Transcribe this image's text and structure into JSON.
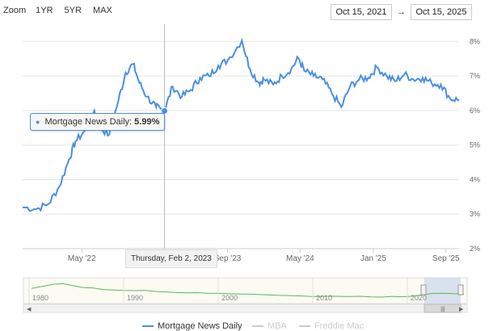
{
  "zoom": {
    "label": "Zoom",
    "buttons": [
      "1YR",
      "5YR",
      "MAX"
    ]
  },
  "range": {
    "from": "Oct 15, 2021",
    "separator": "→",
    "to": "Oct 15, 2025"
  },
  "tooltip": {
    "series": "Mortgage News Daily",
    "value": "5.99%"
  },
  "crosshair_label": "Thursday, Feb 2, 2023",
  "colors": {
    "primary": "#4a90e2",
    "navigator_line": "#5cb85c",
    "inactive_legend": "#cccccc"
  },
  "navigator": {
    "year_labels": [
      "1980",
      "1990",
      "2000",
      "2010",
      "2020"
    ]
  },
  "chart_data": {
    "type": "line",
    "title": "",
    "xlabel": "",
    "ylabel": "",
    "x_range": [
      "2021-10-15",
      "2025-10-15"
    ],
    "ylim": [
      2,
      8.5
    ],
    "grid": true,
    "y_axis_side": "right",
    "legend_position": "bottom",
    "x_tick_labels": [
      "May '22",
      "Sep '23",
      "May '24",
      "Jan '25",
      "Sep '25"
    ],
    "y_tick_labels": [
      "2%",
      "3%",
      "4%",
      "5%",
      "6%",
      "7%",
      "8%"
    ],
    "y_ticks": [
      2,
      3,
      4,
      5,
      6,
      7,
      8
    ],
    "x_ticks": [
      "2022-05-01",
      "2023-09-01",
      "2024-05-01",
      "2025-01-01",
      "2025-09-01"
    ],
    "highlighted_point": {
      "x": "2023-02-02",
      "y": 5.99
    },
    "series": [
      {
        "name": "Mortgage News Daily",
        "x": [
          "2021-10-15",
          "2021-12-01",
          "2022-01-10",
          "2022-02-15",
          "2022-03-20",
          "2022-04-10",
          "2022-05-10",
          "2022-06-12",
          "2022-07-01",
          "2022-08-01",
          "2022-09-01",
          "2022-09-25",
          "2022-10-20",
          "2022-11-10",
          "2022-12-05",
          "2023-01-05",
          "2023-01-20",
          "2023-02-02",
          "2023-03-01",
          "2023-04-01",
          "2023-05-01",
          "2023-06-01",
          "2023-07-01",
          "2023-08-01",
          "2023-09-01",
          "2023-10-19",
          "2023-11-15",
          "2023-12-15",
          "2024-01-01",
          "2024-02-01",
          "2024-03-01",
          "2024-04-01",
          "2024-04-25",
          "2024-05-15",
          "2024-06-15",
          "2024-07-15",
          "2024-08-15",
          "2024-09-16",
          "2024-10-15",
          "2024-11-15",
          "2024-12-15",
          "2025-01-13",
          "2025-02-15",
          "2025-03-15",
          "2025-04-15",
          "2025-05-15",
          "2025-06-15",
          "2025-07-15",
          "2025-08-15",
          "2025-09-15",
          "2025-10-15"
        ],
        "y": [
          3.2,
          3.15,
          3.3,
          3.8,
          4.6,
          5.1,
          5.4,
          6.0,
          5.5,
          5.3,
          6.3,
          7.1,
          7.35,
          6.8,
          6.4,
          6.1,
          6.05,
          5.99,
          6.7,
          6.4,
          6.6,
          6.95,
          7.0,
          7.3,
          7.45,
          8.03,
          7.2,
          6.8,
          6.9,
          6.75,
          7.0,
          7.2,
          7.52,
          7.15,
          7.0,
          6.9,
          6.5,
          6.1,
          6.7,
          6.9,
          6.95,
          7.25,
          7.0,
          6.85,
          7.05,
          6.9,
          6.95,
          6.8,
          6.75,
          6.35,
          6.3
        ]
      },
      {
        "name": "MBA"
      },
      {
        "name": "Freddie Mac"
      }
    ]
  }
}
